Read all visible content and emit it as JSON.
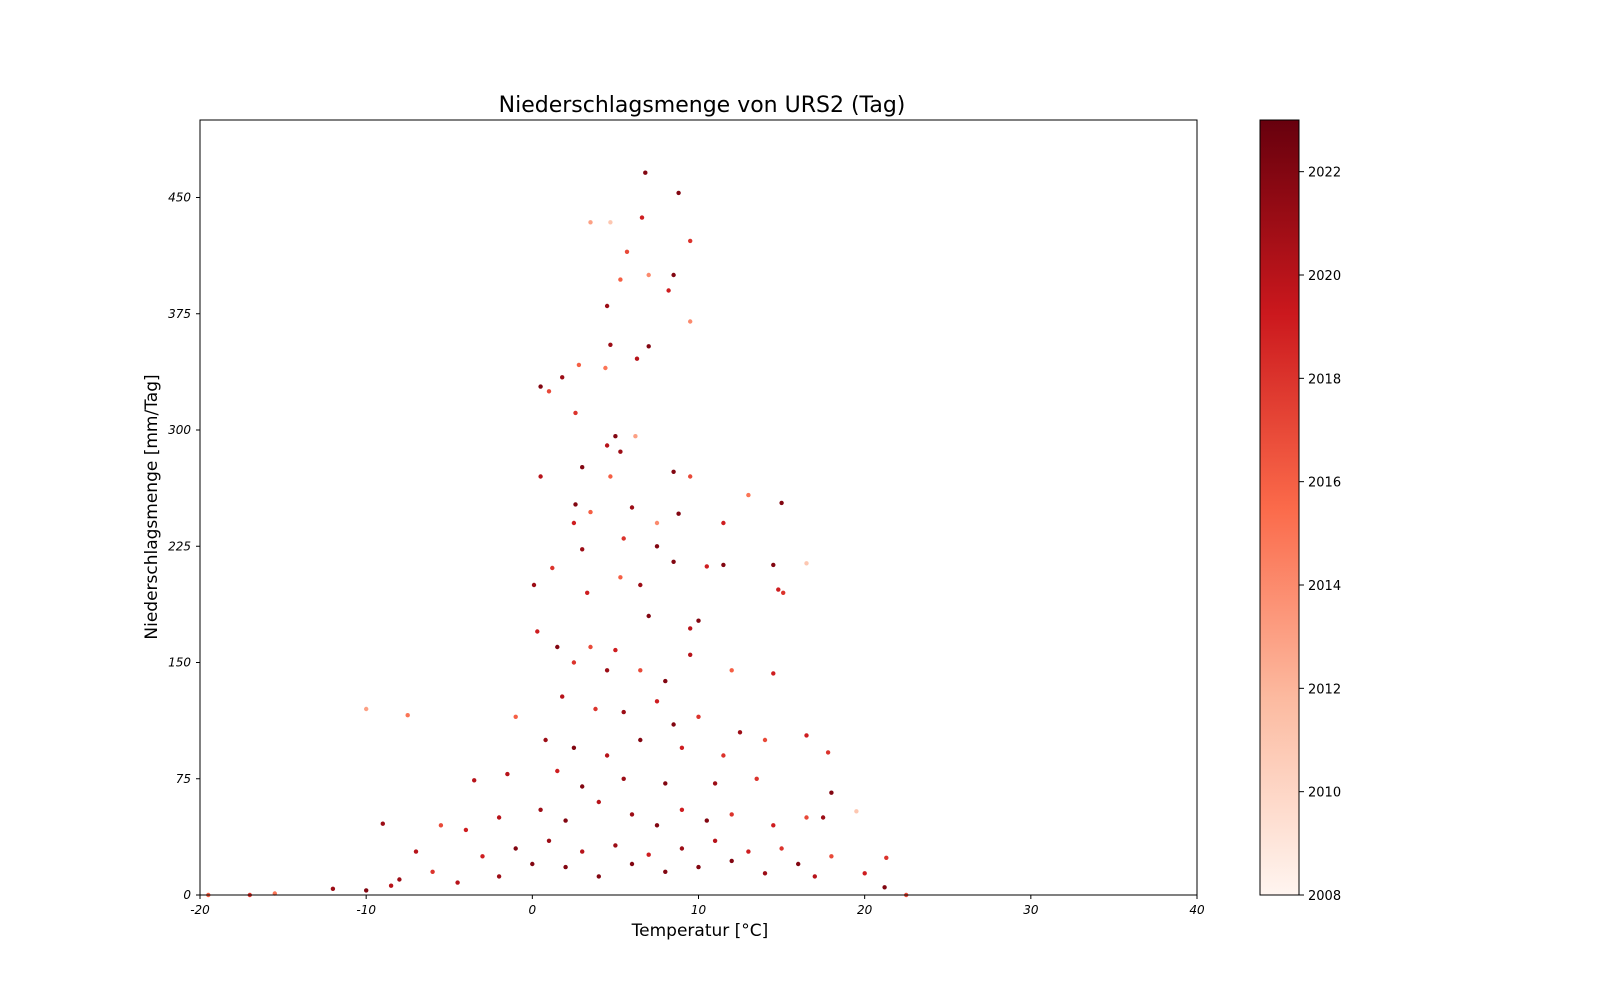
{
  "chart_data": {
    "type": "scatter",
    "title": "Niederschlagsmenge von URS2 (Tag)",
    "xlabel": "Temperatur [°C]",
    "ylabel": "Niederschlagsmenge [mm/Tag]",
    "xlim": [
      -20,
      40
    ],
    "ylim": [
      0,
      500
    ],
    "x_ticks": [
      "-20",
      "-10",
      "0",
      "10",
      "20",
      "30",
      "40"
    ],
    "y_ticks": [
      "0",
      "75",
      "150",
      "225",
      "300",
      "375",
      "450"
    ],
    "grid": false,
    "colormap": "Reds",
    "color_by": "year",
    "colorbar": {
      "range": [
        2008,
        2023
      ],
      "ticks": [
        "2008",
        "2010",
        "2012",
        "2014",
        "2016",
        "2018",
        "2020",
        "2022"
      ],
      "placement": "right"
    },
    "colors": {
      "low": "#fff5f0",
      "mid": "#fb6a4a",
      "high": "#67000d"
    },
    "points": [
      {
        "x": 6.8,
        "y": 466,
        "year": 2022
      },
      {
        "x": 8.8,
        "y": 453,
        "year": 2022
      },
      {
        "x": 6.6,
        "y": 437,
        "year": 2019
      },
      {
        "x": 3.5,
        "y": 434,
        "year": 2013
      },
      {
        "x": 4.7,
        "y": 434,
        "year": 2011
      },
      {
        "x": 5.7,
        "y": 415,
        "year": 2017
      },
      {
        "x": 9.5,
        "y": 422,
        "year": 2018
      },
      {
        "x": 8.5,
        "y": 400,
        "year": 2022
      },
      {
        "x": 5.3,
        "y": 397,
        "year": 2016
      },
      {
        "x": 7.0,
        "y": 400,
        "year": 2014
      },
      {
        "x": 8.2,
        "y": 390,
        "year": 2019
      },
      {
        "x": 4.5,
        "y": 380,
        "year": 2021
      },
      {
        "x": 6.3,
        "y": 346,
        "year": 2020
      },
      {
        "x": 7.0,
        "y": 354,
        "year": 2022
      },
      {
        "x": 4.7,
        "y": 355,
        "year": 2021
      },
      {
        "x": 9.5,
        "y": 370,
        "year": 2014
      },
      {
        "x": 0.5,
        "y": 328,
        "year": 2022
      },
      {
        "x": 1.0,
        "y": 325,
        "year": 2017
      },
      {
        "x": 1.8,
        "y": 334,
        "year": 2021
      },
      {
        "x": 2.8,
        "y": 342,
        "year": 2016
      },
      {
        "x": 4.4,
        "y": 340,
        "year": 2015
      },
      {
        "x": 2.6,
        "y": 311,
        "year": 2018
      },
      {
        "x": 5.0,
        "y": 296,
        "year": 2022
      },
      {
        "x": 4.5,
        "y": 290,
        "year": 2020
      },
      {
        "x": 5.3,
        "y": 286,
        "year": 2021
      },
      {
        "x": 6.2,
        "y": 296,
        "year": 2013
      },
      {
        "x": 0.5,
        "y": 270,
        "year": 2020
      },
      {
        "x": 3.0,
        "y": 276,
        "year": 2022
      },
      {
        "x": 4.7,
        "y": 270,
        "year": 2016
      },
      {
        "x": 8.5,
        "y": 273,
        "year": 2022
      },
      {
        "x": 9.5,
        "y": 270,
        "year": 2017
      },
      {
        "x": 15.0,
        "y": 253,
        "year": 2022
      },
      {
        "x": 2.6,
        "y": 252,
        "year": 2022
      },
      {
        "x": 2.5,
        "y": 240,
        "year": 2019
      },
      {
        "x": 3.5,
        "y": 247,
        "year": 2016
      },
      {
        "x": 6.0,
        "y": 250,
        "year": 2021
      },
      {
        "x": 8.8,
        "y": 246,
        "year": 2022
      },
      {
        "x": 7.5,
        "y": 240,
        "year": 2014
      },
      {
        "x": 13.0,
        "y": 258,
        "year": 2015
      },
      {
        "x": 11.5,
        "y": 240,
        "year": 2019
      },
      {
        "x": 3.0,
        "y": 223,
        "year": 2021
      },
      {
        "x": 5.5,
        "y": 230,
        "year": 2018
      },
      {
        "x": 7.5,
        "y": 225,
        "year": 2022
      },
      {
        "x": 8.5,
        "y": 215,
        "year": 2022
      },
      {
        "x": 10.5,
        "y": 212,
        "year": 2019
      },
      {
        "x": 11.5,
        "y": 213,
        "year": 2022
      },
      {
        "x": 14.5,
        "y": 213,
        "year": 2022
      },
      {
        "x": 16.5,
        "y": 214,
        "year": 2011
      },
      {
        "x": 0.1,
        "y": 200,
        "year": 2021
      },
      {
        "x": 1.2,
        "y": 211,
        "year": 2018
      },
      {
        "x": 3.3,
        "y": 195,
        "year": 2019
      },
      {
        "x": 5.3,
        "y": 205,
        "year": 2016
      },
      {
        "x": 6.5,
        "y": 200,
        "year": 2021
      },
      {
        "x": 14.8,
        "y": 197,
        "year": 2019
      },
      {
        "x": 15.1,
        "y": 195,
        "year": 2018
      },
      {
        "x": 7.0,
        "y": 180,
        "year": 2022
      },
      {
        "x": 10.0,
        "y": 177,
        "year": 2022
      },
      {
        "x": 9.5,
        "y": 172,
        "year": 2020
      },
      {
        "x": 0.3,
        "y": 170,
        "year": 2019
      },
      {
        "x": 1.5,
        "y": 160,
        "year": 2022
      },
      {
        "x": 3.5,
        "y": 160,
        "year": 2017
      },
      {
        "x": 5.0,
        "y": 158,
        "year": 2019
      },
      {
        "x": 2.5,
        "y": 150,
        "year": 2018
      },
      {
        "x": 4.5,
        "y": 145,
        "year": 2021
      },
      {
        "x": 6.5,
        "y": 145,
        "year": 2017
      },
      {
        "x": 8.0,
        "y": 138,
        "year": 2022
      },
      {
        "x": 9.5,
        "y": 155,
        "year": 2020
      },
      {
        "x": 12.0,
        "y": 145,
        "year": 2016
      },
      {
        "x": 14.5,
        "y": 143,
        "year": 2019
      },
      {
        "x": 1.8,
        "y": 128,
        "year": 2020
      },
      {
        "x": 3.8,
        "y": 120,
        "year": 2018
      },
      {
        "x": 5.5,
        "y": 118,
        "year": 2021
      },
      {
        "x": 7.5,
        "y": 125,
        "year": 2019
      },
      {
        "x": 8.5,
        "y": 110,
        "year": 2022
      },
      {
        "x": 10.0,
        "y": 115,
        "year": 2018
      },
      {
        "x": 12.5,
        "y": 105,
        "year": 2021
      },
      {
        "x": -10.0,
        "y": 120,
        "year": 2013
      },
      {
        "x": -7.5,
        "y": 116,
        "year": 2015
      },
      {
        "x": -1.0,
        "y": 115,
        "year": 2016
      },
      {
        "x": 0.8,
        "y": 100,
        "year": 2021
      },
      {
        "x": 2.5,
        "y": 95,
        "year": 2022
      },
      {
        "x": 4.5,
        "y": 90,
        "year": 2020
      },
      {
        "x": 6.5,
        "y": 100,
        "year": 2022
      },
      {
        "x": 9.0,
        "y": 95,
        "year": 2019
      },
      {
        "x": 11.5,
        "y": 90,
        "year": 2018
      },
      {
        "x": 14.0,
        "y": 100,
        "year": 2017
      },
      {
        "x": 16.5,
        "y": 103,
        "year": 2019
      },
      {
        "x": 17.8,
        "y": 92,
        "year": 2018
      },
      {
        "x": -1.5,
        "y": 78,
        "year": 2020
      },
      {
        "x": 1.5,
        "y": 80,
        "year": 2019
      },
      {
        "x": 3.0,
        "y": 70,
        "year": 2022
      },
      {
        "x": 5.5,
        "y": 75,
        "year": 2021
      },
      {
        "x": 8.0,
        "y": 72,
        "year": 2022
      },
      {
        "x": 11.0,
        "y": 72,
        "year": 2021
      },
      {
        "x": 13.5,
        "y": 75,
        "year": 2018
      },
      {
        "x": 18.0,
        "y": 66,
        "year": 2022
      },
      {
        "x": -3.5,
        "y": 74,
        "year": 2020
      },
      {
        "x": -9.0,
        "y": 46,
        "year": 2021
      },
      {
        "x": -5.5,
        "y": 45,
        "year": 2017
      },
      {
        "x": -4.0,
        "y": 42,
        "year": 2019
      },
      {
        "x": -2.0,
        "y": 50,
        "year": 2020
      },
      {
        "x": 0.5,
        "y": 55,
        "year": 2021
      },
      {
        "x": 2.0,
        "y": 48,
        "year": 2022
      },
      {
        "x": 4.0,
        "y": 60,
        "year": 2020
      },
      {
        "x": 6.0,
        "y": 52,
        "year": 2021
      },
      {
        "x": 7.5,
        "y": 45,
        "year": 2022
      },
      {
        "x": 9.0,
        "y": 55,
        "year": 2019
      },
      {
        "x": 10.5,
        "y": 48,
        "year": 2022
      },
      {
        "x": 12.0,
        "y": 52,
        "year": 2018
      },
      {
        "x": 14.5,
        "y": 45,
        "year": 2019
      },
      {
        "x": 16.5,
        "y": 50,
        "year": 2017
      },
      {
        "x": 17.5,
        "y": 50,
        "year": 2021
      },
      {
        "x": 19.5,
        "y": 54,
        "year": 2011
      },
      {
        "x": -8.0,
        "y": 10,
        "year": 2021
      },
      {
        "x": -7.0,
        "y": 28,
        "year": 2020
      },
      {
        "x": -6.0,
        "y": 15,
        "year": 2018
      },
      {
        "x": -4.5,
        "y": 8,
        "year": 2020
      },
      {
        "x": -3.0,
        "y": 25,
        "year": 2019
      },
      {
        "x": -2.0,
        "y": 12,
        "year": 2021
      },
      {
        "x": -1.0,
        "y": 30,
        "year": 2022
      },
      {
        "x": 0.0,
        "y": 20,
        "year": 2022
      },
      {
        "x": 1.0,
        "y": 35,
        "year": 2021
      },
      {
        "x": 2.0,
        "y": 18,
        "year": 2022
      },
      {
        "x": 3.0,
        "y": 28,
        "year": 2020
      },
      {
        "x": 4.0,
        "y": 12,
        "year": 2022
      },
      {
        "x": 5.0,
        "y": 32,
        "year": 2021
      },
      {
        "x": 6.0,
        "y": 20,
        "year": 2022
      },
      {
        "x": 7.0,
        "y": 26,
        "year": 2019
      },
      {
        "x": 8.0,
        "y": 15,
        "year": 2022
      },
      {
        "x": 9.0,
        "y": 30,
        "year": 2021
      },
      {
        "x": 10.0,
        "y": 18,
        "year": 2022
      },
      {
        "x": 11.0,
        "y": 35,
        "year": 2020
      },
      {
        "x": 12.0,
        "y": 22,
        "year": 2022
      },
      {
        "x": 13.0,
        "y": 28,
        "year": 2019
      },
      {
        "x": 14.0,
        "y": 14,
        "year": 2021
      },
      {
        "x": 15.0,
        "y": 30,
        "year": 2018
      },
      {
        "x": 16.0,
        "y": 20,
        "year": 2022
      },
      {
        "x": 17.0,
        "y": 12,
        "year": 2020
      },
      {
        "x": 18.0,
        "y": 25,
        "year": 2017
      },
      {
        "x": 20.0,
        "y": 14,
        "year": 2019
      },
      {
        "x": 21.3,
        "y": 24,
        "year": 2018
      },
      {
        "x": -12.0,
        "y": 4,
        "year": 2021
      },
      {
        "x": -10.0,
        "y": 3,
        "year": 2022
      },
      {
        "x": -8.5,
        "y": 6,
        "year": 2020
      },
      {
        "x": 21.2,
        "y": 5,
        "year": 2022
      },
      {
        "x": -19.5,
        "y": 0,
        "year": 2016
      },
      {
        "x": -17.0,
        "y": 0,
        "year": 2018
      },
      {
        "x": -15.5,
        "y": 1,
        "year": 2015
      },
      {
        "x": 22.5,
        "y": 0,
        "year": 2017
      }
    ]
  }
}
